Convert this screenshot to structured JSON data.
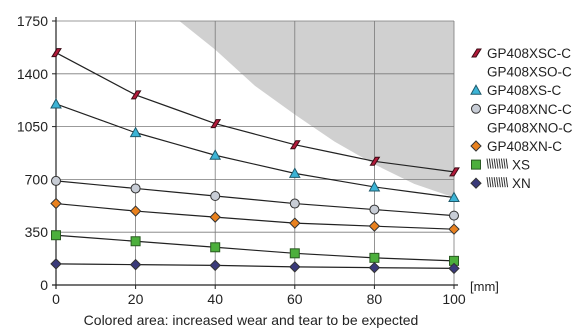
{
  "chart_data": {
    "type": "line",
    "title": "",
    "xlabel": "[mm]",
    "ylabel": "",
    "caption": "Colored area: increased wear and tear to be expected",
    "x": [
      0,
      20,
      40,
      60,
      80,
      100
    ],
    "xlim": [
      0,
      100
    ],
    "ylim": [
      0,
      1750
    ],
    "x_ticks": [
      0,
      20,
      40,
      60,
      80,
      100
    ],
    "y_ticks": [
      0,
      350,
      700,
      1050,
      1400,
      1750
    ],
    "grid": true,
    "legend_position": "right",
    "shaded_region": {
      "label": "Colored area: increased wear and tear to be expected",
      "color": "#d0d0d0",
      "boundary": [
        [
          31,
          1750
        ],
        [
          40,
          1560
        ],
        [
          50,
          1320
        ],
        [
          60,
          1130
        ],
        [
          70,
          950
        ],
        [
          80,
          800
        ],
        [
          90,
          670
        ],
        [
          100,
          580
        ]
      ]
    },
    "series": [
      {
        "name": "GP408XSC-C",
        "marker": "parallelogram",
        "color": "#b31b3b",
        "values": [
          1540,
          1260,
          1070,
          930,
          820,
          750
        ]
      },
      {
        "name": "GP408XS-C",
        "marker": "triangle",
        "color": "#3cb4d6",
        "values": [
          1200,
          1010,
          860,
          740,
          650,
          580
        ]
      },
      {
        "name": "GP408XNC-C",
        "marker": "circle",
        "color": "#c8cdd6",
        "values": [
          690,
          640,
          590,
          540,
          500,
          460
        ]
      },
      {
        "name": "GP408XN-C",
        "marker": "diamond",
        "color": "#e9811e",
        "values": [
          540,
          490,
          450,
          410,
          390,
          370
        ]
      },
      {
        "name": "XS",
        "marker": "square",
        "color": "#4caf3c",
        "values": [
          330,
          290,
          250,
          210,
          180,
          160
        ]
      },
      {
        "name": "XN",
        "marker": "diamond",
        "color": "#3a3a7a",
        "values": [
          140,
          135,
          130,
          120,
          115,
          110
        ]
      }
    ],
    "legend": [
      {
        "label": "GP408XSC-C",
        "marker": "parallelogram",
        "color": "#b31b3b"
      },
      {
        "label": "GP408XSO-C",
        "marker": "none",
        "color": ""
      },
      {
        "label": "GP408XS-C",
        "marker": "triangle",
        "color": "#3cb4d6"
      },
      {
        "label": "GP408XNC-C",
        "marker": "circle",
        "color": "#c8cdd6"
      },
      {
        "label": "GP408XNO-C",
        "marker": "none",
        "color": ""
      },
      {
        "label": "GP408XN-C",
        "marker": "diamond",
        "color": "#e9811e"
      },
      {
        "label": "XS",
        "marker": "square",
        "color": "#4caf3c",
        "logo": "hatched-logo"
      },
      {
        "label": "XN",
        "marker": "diamond",
        "color": "#3a3a7a",
        "logo": "hatched-logo"
      }
    ]
  }
}
